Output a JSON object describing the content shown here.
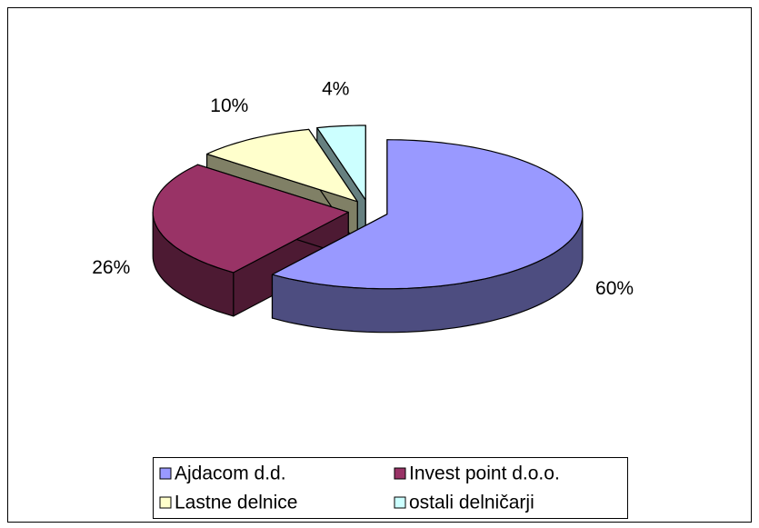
{
  "chart_data": {
    "type": "pie3d",
    "series": [
      {
        "name": "Ajdacom d.d.",
        "color": "#9999ff"
      },
      {
        "name": "Invest point d.o.o.",
        "color": "#993366"
      },
      {
        "name": "Lastne delnice",
        "color": "#ffffcc"
      },
      {
        "name": "ostali delničarji",
        "color": "#ccffff"
      }
    ],
    "values": [
      60,
      26,
      10,
      4
    ],
    "value_labels": [
      "60%",
      "26%",
      "10%",
      "4%"
    ],
    "legend": "bottom"
  }
}
